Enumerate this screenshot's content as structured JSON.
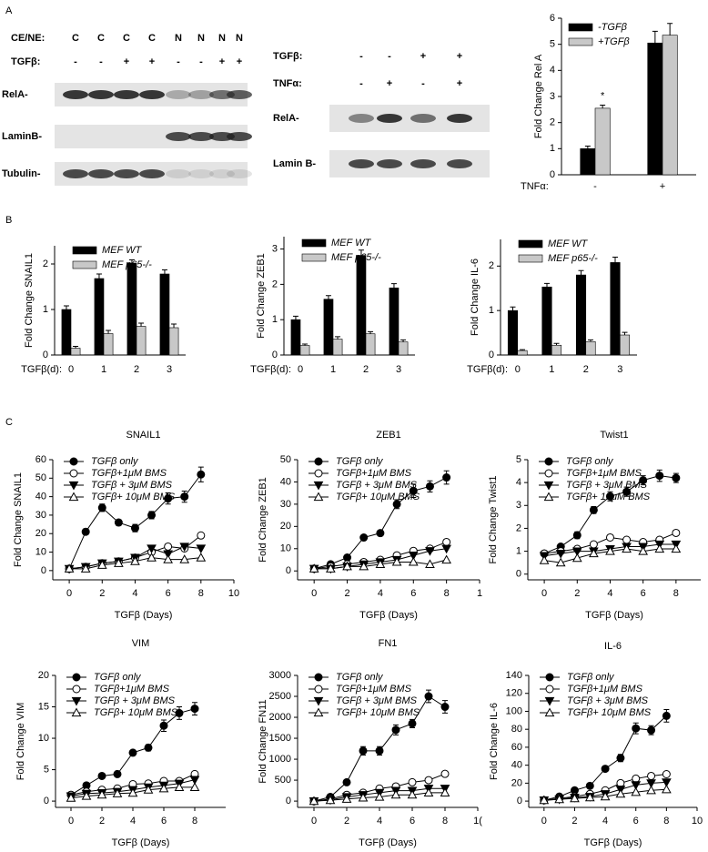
{
  "panel_labels": [
    "A",
    "B",
    "C"
  ],
  "blots": [
    {
      "rows": [
        {
          "label": "CE/NE:",
          "cells": [
            "C",
            "C",
            "C",
            "C",
            "N",
            "N",
            "N",
            "N"
          ]
        },
        {
          "label": "TGFβ:",
          "cells": [
            "-",
            "-",
            "+",
            "+",
            "-",
            "-",
            "+",
            "+"
          ]
        }
      ],
      "bands": [
        "RelA-",
        "LaminB-",
        "Tubulin-"
      ]
    },
    {
      "rows": [
        {
          "label": "TGFβ:",
          "cells": [
            "-",
            "-",
            "+",
            "+"
          ]
        },
        {
          "label": "TNFα:",
          "cells": [
            "-",
            "+",
            "-",
            "+"
          ]
        }
      ],
      "bands": [
        "RelA-",
        "Lamin B-"
      ]
    }
  ],
  "chart_data": [
    {
      "type": "bar",
      "ylabel": "Fold Change Rel A",
      "xlabel": "TNFα:",
      "categories": [
        "-",
        "+"
      ],
      "ylim": [
        0,
        6
      ],
      "yticks": [
        0,
        1,
        2,
        3,
        4,
        5,
        6
      ],
      "annotation": "*",
      "series": [
        {
          "name": "-TGFβ",
          "color": "#000000",
          "values": [
            1,
            5.05
          ],
          "errors": [
            0.1,
            0.45
          ]
        },
        {
          "name": "+TGFβ",
          "color": "#c8c8c8",
          "values": [
            2.55,
            5.35
          ],
          "errors": [
            0.12,
            0.45
          ]
        }
      ]
    },
    {
      "type": "bar",
      "ylabel": "Fold Change SNAIL1",
      "xlabel": "TGFβ(d):",
      "categories": [
        "0",
        "1",
        "2",
        "3"
      ],
      "ylim": [
        0,
        2.4
      ],
      "yticks": [
        0,
        1,
        2
      ],
      "series": [
        {
          "name": "MEF WT",
          "color": "#000000",
          "values": [
            1,
            1.68,
            2.02,
            1.78
          ],
          "errors": [
            0.08,
            0.1,
            0.07,
            0.09
          ]
        },
        {
          "name": "MEF p65-/-",
          "color": "#c8c8c8",
          "values": [
            0.15,
            0.47,
            0.63,
            0.6
          ],
          "errors": [
            0.04,
            0.07,
            0.07,
            0.08
          ]
        }
      ]
    },
    {
      "type": "bar",
      "ylabel": "Fold Change ZEB1",
      "xlabel": "TGFβ(d):",
      "categories": [
        "0",
        "1",
        "2",
        "3"
      ],
      "ylim": [
        0,
        3.35
      ],
      "yticks": [
        0,
        1,
        2,
        3
      ],
      "series": [
        {
          "name": "MEF WT",
          "color": "#000000",
          "values": [
            1,
            1.58,
            2.82,
            1.9
          ],
          "errors": [
            0.1,
            0.1,
            0.15,
            0.12
          ]
        },
        {
          "name": "MEF p65-/-",
          "color": "#c8c8c8",
          "values": [
            0.27,
            0.45,
            0.6,
            0.37
          ],
          "errors": [
            0.04,
            0.07,
            0.06,
            0.06
          ]
        }
      ]
    },
    {
      "type": "bar",
      "ylabel": "Fold Change IL-6",
      "xlabel": "TGFβ(d):",
      "categories": [
        "0",
        "1",
        "2",
        "3"
      ],
      "ylim": [
        0,
        2.6
      ],
      "yticks": [
        0,
        1,
        2
      ],
      "series": [
        {
          "name": "MEF WT",
          "color": "#000000",
          "values": [
            1,
            1.53,
            1.8,
            2.08
          ],
          "errors": [
            0.08,
            0.08,
            0.1,
            0.12
          ]
        },
        {
          "name": "MEF p65-/-",
          "color": "#c8c8c8",
          "values": [
            0.1,
            0.22,
            0.3,
            0.45
          ],
          "errors": [
            0.02,
            0.04,
            0.04,
            0.06
          ]
        }
      ]
    },
    {
      "type": "line",
      "title": "SNAIL1",
      "ylabel": "Fold Change SNAIL1",
      "xlabel": "TGFβ (Days)",
      "x": [
        0,
        1,
        2,
        3,
        4,
        5,
        6,
        7,
        8
      ],
      "xlim": [
        -1,
        10
      ],
      "xticks": [
        0,
        2,
        4,
        6,
        8,
        10
      ],
      "ylim": [
        -5,
        60
      ],
      "yticks": [
        0,
        10,
        20,
        30,
        40,
        50,
        60
      ],
      "series": [
        {
          "name": "TGFβ only",
          "color": "#000000",
          "marker": "filled-circle",
          "values": [
            1,
            21,
            34,
            26,
            23,
            30,
            39,
            40,
            52
          ],
          "errors": [
            1,
            1.5,
            2,
            1.5,
            2,
            2,
            3,
            3,
            4
          ]
        },
        {
          "name": "TGFβ+1μM BMS",
          "color": "#000000",
          "marker": "open-circle",
          "values": [
            1,
            2,
            4,
            5,
            7,
            10,
            13,
            12,
            19
          ]
        },
        {
          "name": "TGFβ + 3μM BMS",
          "color": "#000000",
          "marker": "filled-triangle-down",
          "values": [
            1,
            2,
            4,
            5,
            7,
            12,
            9,
            13,
            12
          ]
        },
        {
          "name": "TGFβ+ 10μM BMS",
          "color": "#000000",
          "marker": "open-triangle-up",
          "values": [
            1,
            1,
            3,
            4,
            5,
            7,
            6,
            6,
            7
          ]
        }
      ]
    },
    {
      "type": "line",
      "title": "ZEB1",
      "ylabel": "Fold Change ZEB1",
      "xlabel": "TGFβ (Days)",
      "x": [
        0,
        1,
        2,
        3,
        4,
        5,
        6,
        7,
        8
      ],
      "xlim": [
        -1,
        10
      ],
      "xticks": [
        0,
        2,
        4,
        6,
        8,
        {
          "value": 10,
          "label": "1"
        }
      ],
      "ylim": [
        -4,
        50
      ],
      "yticks": [
        0,
        10,
        20,
        30,
        40,
        50
      ],
      "series": [
        {
          "name": "TGFβ only",
          "color": "#000000",
          "marker": "filled-circle",
          "values": [
            1,
            3,
            6,
            15,
            17,
            30,
            36,
            38,
            42
          ],
          "errors": [
            0.5,
            0.5,
            0.8,
            1,
            1.2,
            2,
            3,
            2.5,
            3
          ]
        },
        {
          "name": "TGFβ+1μM BMS",
          "color": "#000000",
          "marker": "open-circle",
          "values": [
            1,
            2,
            3,
            4,
            5,
            7,
            9,
            10,
            13
          ]
        },
        {
          "name": "TGFβ + 3μM BMS",
          "color": "#000000",
          "marker": "filled-triangle-down",
          "values": [
            1,
            1,
            2,
            3,
            4,
            5,
            7,
            9,
            10
          ]
        },
        {
          "name": "TGFβ+ 10μM BMS",
          "color": "#000000",
          "marker": "open-triangle-up",
          "values": [
            1,
            1,
            2,
            2,
            3,
            4,
            4,
            3,
            5
          ]
        }
      ]
    },
    {
      "type": "line",
      "title": "Twist1",
      "ylabel": "Fold Change Twist1",
      "xlabel": "TGFβ (Days)",
      "x": [
        0,
        1,
        2,
        3,
        4,
        5,
        6,
        7,
        8
      ],
      "xlim": [
        -1,
        9.5
      ],
      "xticks": [
        0,
        2,
        4,
        6,
        8
      ],
      "ylim": [
        -0.25,
        5
      ],
      "yticks": [
        0,
        1,
        2,
        3,
        4,
        5
      ],
      "series": [
        {
          "name": "TGFβ only",
          "color": "#000000",
          "marker": "filled-circle",
          "values": [
            0.9,
            1.2,
            1.7,
            2.8,
            3.4,
            3.6,
            4.1,
            4.3,
            4.2
          ],
          "errors": [
            0.1,
            0.1,
            0.15,
            0.15,
            0.2,
            0.2,
            0.2,
            0.25,
            0.2
          ]
        },
        {
          "name": "TGFβ+1μM BMS",
          "color": "#000000",
          "marker": "open-circle",
          "values": [
            0.9,
            1.0,
            1.1,
            1.3,
            1.6,
            1.5,
            1.4,
            1.5,
            1.8
          ]
        },
        {
          "name": "TGFβ + 3μM BMS",
          "color": "#000000",
          "marker": "filled-triangle-down",
          "values": [
            0.8,
            0.9,
            1.0,
            1.0,
            1.1,
            1.2,
            1.2,
            1.3,
            1.3
          ]
        },
        {
          "name": "TGFβ+ 10μM BMS",
          "color": "#000000",
          "marker": "open-triangle-up",
          "values": [
            0.6,
            0.5,
            0.7,
            0.9,
            1.0,
            1.1,
            1.0,
            1.1,
            1.1
          ]
        }
      ]
    },
    {
      "type": "line",
      "title": "VIM",
      "ylabel": "Fold Change VIM",
      "xlabel": "TGFβ (Days)",
      "x": [
        0,
        1,
        2,
        3,
        4,
        5,
        6,
        7,
        8
      ],
      "xlim": [
        -1,
        10
      ],
      "xticks": [
        0,
        2,
        4,
        6,
        8
      ],
      "ylim": [
        -1,
        20
      ],
      "yticks": [
        0,
        5,
        10,
        15,
        20
      ],
      "series": [
        {
          "name": "TGFβ only",
          "color": "#000000",
          "marker": "filled-circle",
          "values": [
            1,
            2.5,
            4,
            4.3,
            7.7,
            8.5,
            12,
            14,
            14.7
          ],
          "errors": [
            0.3,
            0.3,
            0.3,
            0.3,
            0.4,
            0.5,
            0.9,
            1,
            1
          ]
        },
        {
          "name": "TGFβ+1μM BMS",
          "color": "#000000",
          "marker": "open-circle",
          "values": [
            1,
            1.5,
            1.8,
            2,
            2.7,
            2.8,
            3.2,
            3.2,
            4.3
          ]
        },
        {
          "name": "TGFβ + 3μM BMS",
          "color": "#000000",
          "marker": "filled-triangle-down",
          "values": [
            0.8,
            1.2,
            1.3,
            1.5,
            1.8,
            2.2,
            2.5,
            2.8,
            3.4
          ]
        },
        {
          "name": "TGFβ+ 10μM BMS",
          "color": "#000000",
          "marker": "open-triangle-up",
          "values": [
            0.5,
            0.8,
            1,
            1.2,
            1.3,
            1.8,
            2,
            2.2,
            2.2
          ]
        }
      ]
    },
    {
      "type": "line",
      "title": "FN1",
      "ylabel": "Fold Change FN11",
      "xlabel": "TGFβ (Days)",
      "x": [
        0,
        1,
        2,
        3,
        4,
        5,
        6,
        7,
        8
      ],
      "xlim": [
        -1,
        10
      ],
      "xticks": [
        0,
        2,
        4,
        6,
        8,
        {
          "value": 10,
          "label": "1("
        }
      ],
      "ylim": [
        -150,
        3000
      ],
      "yticks": [
        0,
        500,
        1000,
        1500,
        2000,
        2500,
        3000
      ],
      "series": [
        {
          "name": "TGFβ only",
          "color": "#000000",
          "marker": "filled-circle",
          "values": [
            0,
            100,
            450,
            1200,
            1200,
            1700,
            1850,
            2500,
            2250
          ],
          "errors": [
            20,
            30,
            50,
            100,
            100,
            120,
            100,
            150,
            150
          ]
        },
        {
          "name": "TGFβ+1μM BMS",
          "color": "#000000",
          "marker": "open-circle",
          "values": [
            0,
            50,
            150,
            200,
            300,
            350,
            450,
            500,
            650
          ]
        },
        {
          "name": "TGFβ + 3μM BMS",
          "color": "#000000",
          "marker": "filled-triangle-down",
          "values": [
            0,
            30,
            100,
            150,
            200,
            250,
            250,
            300,
            300
          ]
        },
        {
          "name": "TGFβ+ 10μM BMS",
          "color": "#000000",
          "marker": "open-triangle-up",
          "values": [
            0,
            20,
            50,
            80,
            100,
            150,
            150,
            200,
            200
          ]
        }
      ]
    },
    {
      "type": "line",
      "title": "IL-6",
      "ylabel": "Fold Change IL-6",
      "xlabel": "TGFβ (Days)",
      "x": [
        0,
        1,
        2,
        3,
        4,
        5,
        6,
        7,
        8
      ],
      "xlim": [
        -1,
        10
      ],
      "xticks": [
        0,
        2,
        4,
        6,
        8,
        10
      ],
      "ylim": [
        -7,
        140
      ],
      "yticks": [
        0,
        20,
        40,
        60,
        80,
        100,
        120,
        140
      ],
      "series": [
        {
          "name": "TGFβ only",
          "color": "#000000",
          "marker": "filled-circle",
          "values": [
            1,
            5,
            12,
            17,
            36,
            48,
            81,
            79,
            95
          ],
          "errors": [
            1,
            1.5,
            2,
            2,
            3,
            4,
            6,
            5,
            7
          ]
        },
        {
          "name": "TGFβ+1μM BMS",
          "color": "#000000",
          "marker": "open-circle",
          "values": [
            1,
            3,
            5,
            8,
            12,
            20,
            25,
            28,
            30
          ]
        },
        {
          "name": "TGFβ + 3μM BMS",
          "color": "#000000",
          "marker": "filled-triangle-down",
          "values": [
            1,
            2,
            4,
            5,
            8,
            13,
            18,
            20,
            21
          ]
        },
        {
          "name": "TGFβ+ 10μM BMS",
          "color": "#000000",
          "marker": "open-triangle-up",
          "values": [
            1,
            2,
            3,
            4,
            5,
            8,
            10,
            12,
            13
          ]
        }
      ]
    }
  ]
}
